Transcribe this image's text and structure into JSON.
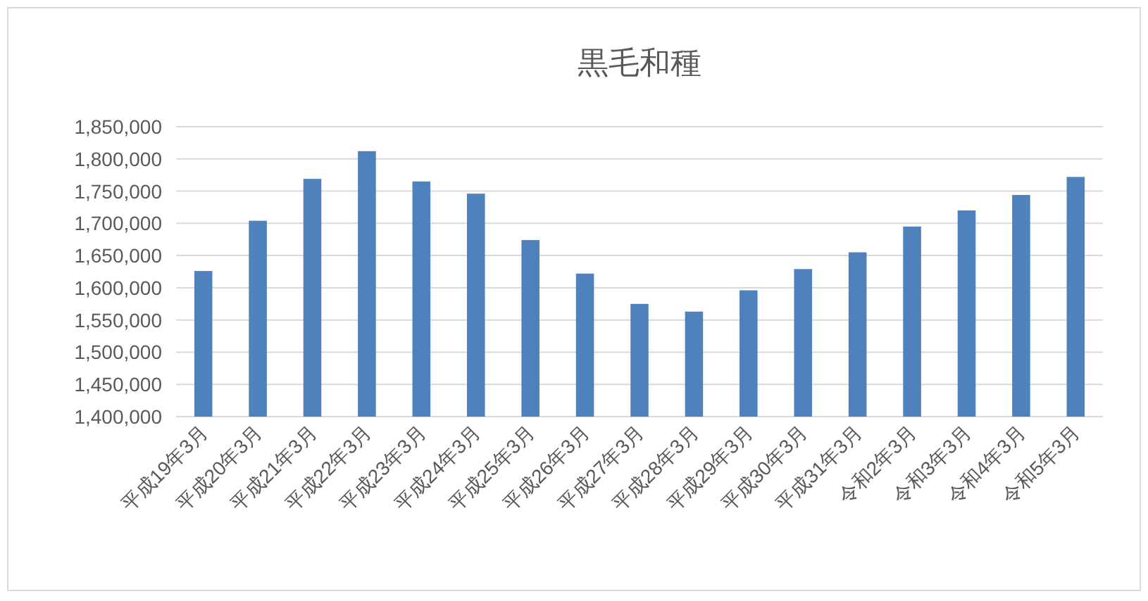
{
  "chart_data": {
    "type": "bar",
    "title": "黒毛和種",
    "categories": [
      "平成19年3月",
      "平成20年3月",
      "平成21年3月",
      "平成22年3月",
      "平成23年3月",
      "平成24年3月",
      "平成25年3月",
      "平成26年3月",
      "平成27年3月",
      "平成28年3月",
      "平成29年3月",
      "平成30年3月",
      "平成31年3月",
      "令和2年3月",
      "令和3年3月",
      "令和4年3月",
      "令和5年3月"
    ],
    "values": [
      1626000,
      1704000,
      1769000,
      1812000,
      1765000,
      1746000,
      1674000,
      1622000,
      1575000,
      1563000,
      1596000,
      1629000,
      1655000,
      1695000,
      1720000,
      1744000,
      1772000
    ],
    "color": "#4f81bd",
    "ylim": [
      1400000,
      1850000
    ],
    "yticks": [
      {
        "value": 1400000,
        "label": "1,400,000"
      },
      {
        "value": 1450000,
        "label": "1,450,000"
      },
      {
        "value": 1500000,
        "label": "1,500,000"
      },
      {
        "value": 1550000,
        "label": "1,550,000"
      },
      {
        "value": 1600000,
        "label": "1,600,000"
      },
      {
        "value": 1650000,
        "label": "1,650,000"
      },
      {
        "value": 1700000,
        "label": "1,700,000"
      },
      {
        "value": 1750000,
        "label": "1,750,000"
      },
      {
        "value": 1800000,
        "label": "1,800,000"
      },
      {
        "value": 1850000,
        "label": "1,850,000"
      }
    ],
    "grid": "y"
  }
}
